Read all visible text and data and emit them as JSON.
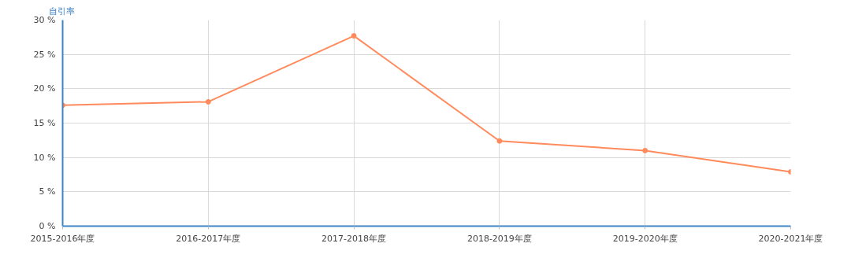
{
  "chart_data": {
    "type": "line",
    "ylabel": "自引率",
    "categories": [
      "2015-2016年度",
      "2016-2017年度",
      "2017-2018年度",
      "2018-2019年度",
      "2019-2020年度",
      "2020-2021年度"
    ],
    "series": [
      {
        "color": "#ff8a5c",
        "values": [
          17.6,
          18.1,
          27.7,
          12.4,
          11.0,
          7.9
        ]
      }
    ],
    "ylim": [
      0,
      30
    ],
    "yticks": [
      {
        "value": 0,
        "label": "0 %"
      },
      {
        "value": 5,
        "label": "5 %"
      },
      {
        "value": 10,
        "label": "10 %"
      },
      {
        "value": 15,
        "label": "15 %"
      },
      {
        "value": 20,
        "label": "20 %"
      },
      {
        "value": 25,
        "label": "25 %"
      },
      {
        "value": 30,
        "label": "30 %"
      }
    ],
    "grid": true,
    "marker": "circle",
    "line_style": "solid"
  }
}
